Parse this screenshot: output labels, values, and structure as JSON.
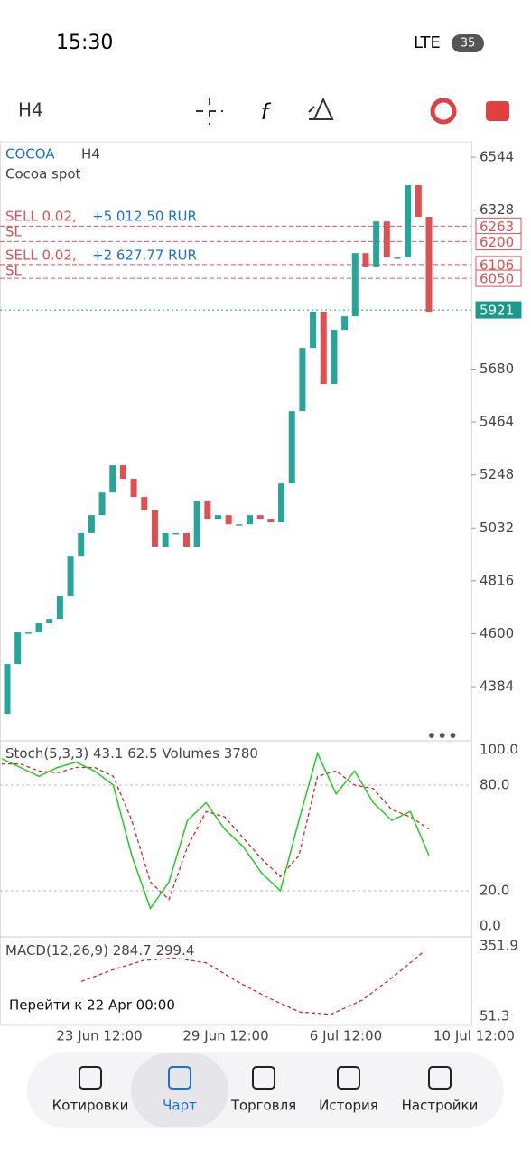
{
  "status": {
    "time": "15:30",
    "network": "LTE",
    "battery": "35"
  },
  "toolbar": {
    "timeframe": "H4"
  },
  "chart": {
    "symbol": "COCOA",
    "timeframe": "H4",
    "description": "Cocoa spot",
    "positions": [
      {
        "label": "SELL 0.02,",
        "profit": "+5 012.50 RUR",
        "sl": "SL"
      },
      {
        "label": "SELL 0.02,",
        "profit": "+2 627.77 RUR",
        "sl": "SL"
      }
    ],
    "type": "candlestick",
    "open": [
      4273,
      4476,
      4605,
      4605,
      4642,
      4660,
      4753,
      4918,
      5011,
      5084,
      5176,
      5287,
      5232,
      5158,
      5103,
      4955,
      5011,
      5011,
      4955,
      5140,
      5066,
      5084,
      5047,
      5047,
      5084,
      5066,
      5055,
      5213,
      5508,
      5766,
      5914,
      5619,
      5840,
      5895,
      6153,
      6098,
      6282,
      6135,
      6135,
      6430,
      6301
    ],
    "close": [
      4476,
      4605,
      4605,
      4642,
      4660,
      4753,
      4918,
      5011,
      5084,
      5176,
      5287,
      5232,
      5158,
      5103,
      4955,
      5011,
      5011,
      4955,
      5140,
      5066,
      5084,
      5047,
      5047,
      5084,
      5066,
      5055,
      5213,
      5508,
      5766,
      5914,
      5619,
      5840,
      5895,
      6153,
      6098,
      6282,
      6135,
      6135,
      6430,
      6301,
      5914
    ],
    "ylim": [
      4163,
      6607
    ],
    "yticks": [
      6544,
      6328,
      5680,
      5464,
      5248,
      5032,
      4816,
      4600,
      4384
    ],
    "levels": [
      {
        "value": 6263,
        "color": "#e05050"
      },
      {
        "value": 6200,
        "color": "#e05050"
      },
      {
        "value": 6106,
        "color": "#e05050"
      },
      {
        "value": 6050,
        "color": "#e05050"
      },
      {
        "value": 5921,
        "color": "#1a9a8a"
      }
    ],
    "xlabels": [
      "23 Jun 12:00",
      "29 Jun 12:00",
      "6 Jul 12:00",
      "10 Jul 12:00"
    ],
    "goto": "Перейти к 22 Apr 00:00"
  },
  "stoch": {
    "label": "Stoch(5,3,3)",
    "k": 43.1,
    "d": 62.5,
    "volumes_label": "Volumes",
    "volumes": 3780,
    "ylim": [
      0,
      100
    ],
    "yticks": [
      {
        "value": 100,
        "label": "100.0"
      },
      {
        "value": 80,
        "label": "80.0"
      },
      {
        "value": 20,
        "label": "20.0"
      },
      {
        "value": 0,
        "label": "0.0"
      }
    ],
    "k_values": [
      95,
      90,
      85,
      90,
      93,
      88,
      80,
      40,
      10,
      25,
      60,
      70,
      55,
      45,
      30,
      20,
      60,
      98,
      75,
      88,
      70,
      60,
      65,
      40
    ],
    "d_values": [
      92,
      92,
      88,
      87,
      90,
      90,
      85,
      60,
      25,
      15,
      45,
      65,
      62,
      50,
      38,
      28,
      40,
      85,
      88,
      80,
      78,
      66,
      62,
      55
    ]
  },
  "macd": {
    "label": "MACD(12,26,9)",
    "v1": 284.7,
    "v2": 299.4,
    "ylim": [
      51.3,
      351.9
    ],
    "signal": [
      200,
      250,
      290,
      300,
      280,
      200,
      130,
      70,
      60,
      120,
      220,
      330
    ]
  },
  "nav": [
    "Котировки",
    "Чарт",
    "Торговля",
    "История",
    "Настройки"
  ]
}
